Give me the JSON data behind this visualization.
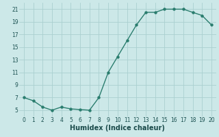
{
  "x": [
    0,
    1,
    2,
    3,
    4,
    5,
    6,
    7,
    8,
    9,
    10,
    11,
    12,
    13,
    14,
    15,
    16,
    17,
    18,
    19,
    20
  ],
  "y": [
    7,
    6.5,
    5.5,
    5,
    5.5,
    5.2,
    5.1,
    5,
    7,
    11,
    13.5,
    16,
    18.5,
    20.5,
    20.5,
    21,
    21,
    21,
    20.5,
    20,
    18.5
  ],
  "line_color": "#2a7d6e",
  "marker_color": "#2a7d6e",
  "bg_color": "#cce8e8",
  "grid_color": "#aad0d0",
  "xlabel": "Humidex (Indice chaleur)",
  "xlim": [
    -0.5,
    20.5
  ],
  "ylim": [
    4,
    22
  ],
  "yticks": [
    5,
    7,
    9,
    11,
    13,
    15,
    17,
    19,
    21
  ],
  "xticks": [
    0,
    1,
    2,
    3,
    4,
    5,
    6,
    7,
    8,
    9,
    10,
    11,
    12,
    13,
    14,
    15,
    16,
    17,
    18,
    19,
    20
  ],
  "tick_fontsize": 5.5,
  "xlabel_fontsize": 7.0,
  "linewidth": 1.0,
  "markersize": 2.2
}
